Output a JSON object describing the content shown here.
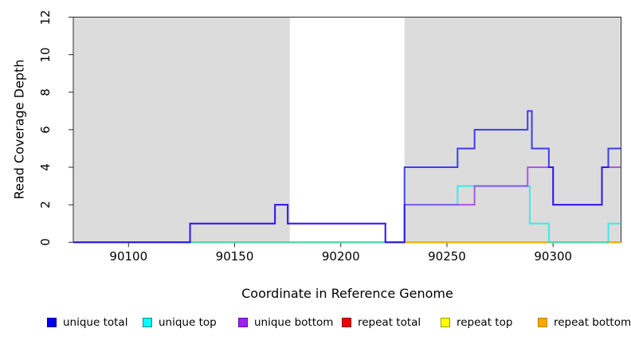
{
  "axes": {
    "xlabel": "Coordinate in Reference Genome",
    "ylabel": "Read Coverage Depth"
  },
  "chart_data": {
    "type": "line",
    "subtype": "step-coverage",
    "title": "",
    "xlabel": "Coordinate in Reference Genome",
    "ylabel": "Read Coverage Depth",
    "xlim": [
      90074,
      90332
    ],
    "ylim": [
      0,
      12
    ],
    "x_ticks": [
      90100,
      90150,
      90200,
      90250,
      90300
    ],
    "y_ticks": [
      0,
      2,
      4,
      6,
      8,
      10,
      12
    ],
    "grid": false,
    "legend_position": "bottom",
    "background_shading": {
      "color": "#DCDCDC",
      "regions": [
        [
          90074,
          90176
        ],
        [
          90230,
          90332
        ]
      ]
    },
    "series": [
      {
        "name": "repeat total",
        "color": "#EE0000",
        "steps": [
          [
            90074,
            0
          ]
        ]
      },
      {
        "name": "repeat top",
        "color": "#FFFF00",
        "steps": [
          [
            90074,
            0
          ]
        ]
      },
      {
        "name": "repeat bottom",
        "color": "#FFA500",
        "steps": [
          [
            90074,
            0
          ]
        ]
      },
      {
        "name": "unique top",
        "color": "#00EEEE",
        "steps": [
          [
            90074,
            0
          ],
          [
            90230,
            2
          ],
          [
            90255,
            3
          ],
          [
            90289,
            1
          ],
          [
            90298,
            0
          ],
          [
            90326,
            1
          ]
        ]
      },
      {
        "name": "unique bottom",
        "color": "#A020F0",
        "steps": [
          [
            90074,
            0
          ],
          [
            90129,
            1
          ],
          [
            90169,
            2
          ],
          [
            90175,
            1
          ],
          [
            90221,
            0
          ],
          [
            90230,
            2
          ],
          [
            90263,
            3
          ],
          [
            90288,
            4
          ],
          [
            90300,
            2
          ],
          [
            90323,
            4
          ]
        ]
      },
      {
        "name": "unique total",
        "color": "#0000EE",
        "steps": [
          [
            90074,
            0
          ],
          [
            90129,
            1
          ],
          [
            90169,
            2
          ],
          [
            90175,
            1
          ],
          [
            90221,
            0
          ],
          [
            90230,
            4
          ],
          [
            90255,
            5
          ],
          [
            90263,
            6
          ],
          [
            90288,
            7
          ],
          [
            90290,
            5
          ],
          [
            90298,
            4
          ],
          [
            90300,
            2
          ],
          [
            90323,
            4
          ],
          [
            90326,
            5
          ]
        ]
      }
    ]
  },
  "legend": {
    "items": [
      {
        "label": "unique total",
        "color": "#0000EE",
        "border": "#000090"
      },
      {
        "label": "unique top",
        "color": "#00FFFF",
        "border": "#008B8B"
      },
      {
        "label": "unique bottom",
        "color": "#A020F0",
        "border": "#5A0CA8"
      },
      {
        "label": "repeat total",
        "color": "#EE0000",
        "border": "#8B0000"
      },
      {
        "label": "repeat top",
        "color": "#FFFF00",
        "border": "#9A9A00"
      },
      {
        "label": "repeat bottom",
        "color": "#FFA500",
        "border": "#B8860B"
      }
    ]
  }
}
